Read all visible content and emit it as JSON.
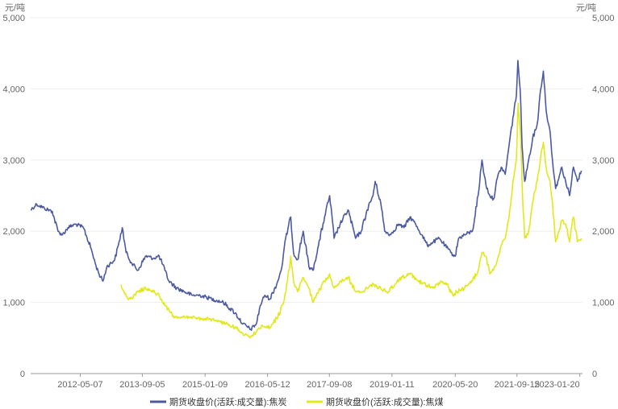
{
  "chart_data": {
    "type": "line",
    "y_unit_left": "元/吨",
    "y_unit_right": "元/吨",
    "ylim": [
      0,
      5000
    ],
    "y_ticks": [
      "0",
      "1,000",
      "2,000",
      "3,000",
      "4,000",
      "5,000"
    ],
    "y_tick_values": [
      0,
      1000,
      2000,
      3000,
      4000,
      5000
    ],
    "x_ticks": [
      "2012-05-07",
      "2013-09-05",
      "2015-01-09",
      "2016-05-12",
      "2017-09-08",
      "2019-01-11",
      "2020-05-20",
      "2021-09-15",
      "2023-01-20"
    ],
    "xlim": [
      "2011-04-15",
      "2023-02-10"
    ],
    "grid": true,
    "legend_position": "bottom",
    "series": [
      {
        "name": "期货收盘价(活跃:成交量):焦炭",
        "color": "#4b5aa0",
        "points": [
          [
            "2011-04-15",
            2300
          ],
          [
            "2011-06-01",
            2380
          ],
          [
            "2011-08-01",
            2320
          ],
          [
            "2011-10-01",
            2280
          ],
          [
            "2011-11-15",
            2000
          ],
          [
            "2011-12-20",
            1950
          ],
          [
            "2012-02-01",
            2050
          ],
          [
            "2012-04-01",
            2100
          ],
          [
            "2012-06-01",
            2050
          ],
          [
            "2012-08-01",
            1750
          ],
          [
            "2012-09-01",
            1550
          ],
          [
            "2012-10-01",
            1400
          ],
          [
            "2012-11-01",
            1300
          ],
          [
            "2012-12-01",
            1500
          ],
          [
            "2013-02-01",
            1600
          ],
          [
            "2013-03-01",
            1800
          ],
          [
            "2013-04-01",
            2050
          ],
          [
            "2013-05-01",
            1700
          ],
          [
            "2013-06-15",
            1550
          ],
          [
            "2013-08-01",
            1450
          ],
          [
            "2013-10-01",
            1650
          ],
          [
            "2013-12-01",
            1620
          ],
          [
            "2014-01-15",
            1650
          ],
          [
            "2014-03-01",
            1450
          ],
          [
            "2014-04-01",
            1300
          ],
          [
            "2014-06-01",
            1200
          ],
          [
            "2014-08-01",
            1150
          ],
          [
            "2014-10-01",
            1100
          ],
          [
            "2014-12-01",
            1100
          ],
          [
            "2015-03-01",
            1050
          ],
          [
            "2015-06-01",
            1000
          ],
          [
            "2015-09-01",
            850
          ],
          [
            "2015-11-01",
            700
          ],
          [
            "2016-01-01",
            620
          ],
          [
            "2016-02-15",
            700
          ],
          [
            "2016-03-15",
            950
          ],
          [
            "2016-04-20",
            1100
          ],
          [
            "2016-06-01",
            1050
          ],
          [
            "2016-08-01",
            1300
          ],
          [
            "2016-09-01",
            1500
          ],
          [
            "2016-10-01",
            1900
          ],
          [
            "2016-11-10",
            2200
          ],
          [
            "2016-12-01",
            1700
          ],
          [
            "2017-01-01",
            1600
          ],
          [
            "2017-02-15",
            2000
          ],
          [
            "2017-04-01",
            1500
          ],
          [
            "2017-05-01",
            1450
          ],
          [
            "2017-06-15",
            1800
          ],
          [
            "2017-08-01",
            2200
          ],
          [
            "2017-09-10",
            2500
          ],
          [
            "2017-10-15",
            1900
          ],
          [
            "2017-12-01",
            2100
          ],
          [
            "2018-02-01",
            2300
          ],
          [
            "2018-04-01",
            1900
          ],
          [
            "2018-05-15",
            2000
          ],
          [
            "2018-07-01",
            2300
          ],
          [
            "2018-08-15",
            2500
          ],
          [
            "2018-09-01",
            2700
          ],
          [
            "2018-10-15",
            2400
          ],
          [
            "2018-11-15",
            2000
          ],
          [
            "2019-01-01",
            1950
          ],
          [
            "2019-03-01",
            2100
          ],
          [
            "2019-04-15",
            2050
          ],
          [
            "2019-06-01",
            2200
          ],
          [
            "2019-07-15",
            2100
          ],
          [
            "2019-09-01",
            1950
          ],
          [
            "2019-10-15",
            1800
          ],
          [
            "2019-12-01",
            1850
          ],
          [
            "2020-01-15",
            1900
          ],
          [
            "2020-03-01",
            1800
          ],
          [
            "2020-04-15",
            1700
          ],
          [
            "2020-05-20",
            1650
          ],
          [
            "2020-06-15",
            1900
          ],
          [
            "2020-08-01",
            1950
          ],
          [
            "2020-10-01",
            2000
          ],
          [
            "2020-11-15",
            2500
          ],
          [
            "2020-12-15",
            3000
          ],
          [
            "2021-01-15",
            2650
          ],
          [
            "2021-02-15",
            2500
          ],
          [
            "2021-03-15",
            2450
          ],
          [
            "2021-04-15",
            2750
          ],
          [
            "2021-05-15",
            2900
          ],
          [
            "2021-06-15",
            2800
          ],
          [
            "2021-07-15",
            3200
          ],
          [
            "2021-08-15",
            3600
          ],
          [
            "2021-09-10",
            3900
          ],
          [
            "2021-09-22",
            4400
          ],
          [
            "2021-10-10",
            4000
          ],
          [
            "2021-10-25",
            3200
          ],
          [
            "2021-11-15",
            2700
          ],
          [
            "2021-12-15",
            3000
          ],
          [
            "2022-01-15",
            3300
          ],
          [
            "2022-02-20",
            3500
          ],
          [
            "2022-03-20",
            4000
          ],
          [
            "2022-04-10",
            4250
          ],
          [
            "2022-05-01",
            3700
          ],
          [
            "2022-06-01",
            3400
          ],
          [
            "2022-06-20",
            3000
          ],
          [
            "2022-07-15",
            2600
          ],
          [
            "2022-08-01",
            2700
          ],
          [
            "2022-09-01",
            2900
          ],
          [
            "2022-10-01",
            2700
          ],
          [
            "2022-11-01",
            2500
          ],
          [
            "2022-12-01",
            2900
          ],
          [
            "2023-01-01",
            2700
          ],
          [
            "2023-02-01",
            2850
          ]
        ]
      },
      {
        "name": "期货收盘价(活跃:成交量):焦煤",
        "color": "#e1e81b",
        "points": [
          [
            "2013-03-22",
            1250
          ],
          [
            "2013-04-15",
            1150
          ],
          [
            "2013-05-15",
            1050
          ],
          [
            "2013-06-15",
            1050
          ],
          [
            "2013-08-01",
            1150
          ],
          [
            "2013-10-01",
            1200
          ],
          [
            "2013-12-01",
            1150
          ],
          [
            "2014-01-15",
            1100
          ],
          [
            "2014-03-01",
            950
          ],
          [
            "2014-04-01",
            900
          ],
          [
            "2014-05-01",
            800
          ],
          [
            "2014-07-01",
            780
          ],
          [
            "2014-09-01",
            800
          ],
          [
            "2014-11-01",
            780
          ],
          [
            "2015-01-01",
            770
          ],
          [
            "2015-04-01",
            750
          ],
          [
            "2015-07-01",
            700
          ],
          [
            "2015-09-01",
            650
          ],
          [
            "2015-11-01",
            560
          ],
          [
            "2016-01-01",
            520
          ],
          [
            "2016-02-15",
            580
          ],
          [
            "2016-04-01",
            680
          ],
          [
            "2016-06-01",
            650
          ],
          [
            "2016-08-01",
            800
          ],
          [
            "2016-09-15",
            1000
          ],
          [
            "2016-10-15",
            1300
          ],
          [
            "2016-11-10",
            1650
          ],
          [
            "2016-12-01",
            1300
          ],
          [
            "2017-01-01",
            1150
          ],
          [
            "2017-02-15",
            1350
          ],
          [
            "2017-04-01",
            1200
          ],
          [
            "2017-05-01",
            1000
          ],
          [
            "2017-06-15",
            1150
          ],
          [
            "2017-08-01",
            1300
          ],
          [
            "2017-09-10",
            1400
          ],
          [
            "2017-10-15",
            1200
          ],
          [
            "2017-12-01",
            1300
          ],
          [
            "2018-02-01",
            1350
          ],
          [
            "2018-04-01",
            1150
          ],
          [
            "2018-06-01",
            1150
          ],
          [
            "2018-08-01",
            1250
          ],
          [
            "2018-10-15",
            1200
          ],
          [
            "2018-12-01",
            1150
          ],
          [
            "2019-02-01",
            1250
          ],
          [
            "2019-04-01",
            1350
          ],
          [
            "2019-06-01",
            1400
          ],
          [
            "2019-08-01",
            1300
          ],
          [
            "2019-10-01",
            1250
          ],
          [
            "2019-12-01",
            1200
          ],
          [
            "2020-02-01",
            1300
          ],
          [
            "2020-03-15",
            1250
          ],
          [
            "2020-05-01",
            1100
          ],
          [
            "2020-06-01",
            1150
          ],
          [
            "2020-08-01",
            1200
          ],
          [
            "2020-10-01",
            1300
          ],
          [
            "2020-11-15",
            1450
          ],
          [
            "2020-12-15",
            1700
          ],
          [
            "2021-01-15",
            1650
          ],
          [
            "2021-02-15",
            1400
          ],
          [
            "2021-03-15",
            1450
          ],
          [
            "2021-04-15",
            1600
          ],
          [
            "2021-05-15",
            1800
          ],
          [
            "2021-06-15",
            1900
          ],
          [
            "2021-07-15",
            2200
          ],
          [
            "2021-08-15",
            2700
          ],
          [
            "2021-09-10",
            3000
          ],
          [
            "2021-09-25",
            3800
          ],
          [
            "2021-10-15",
            3300
          ],
          [
            "2021-10-28",
            2500
          ],
          [
            "2021-11-15",
            1900
          ],
          [
            "2021-12-15",
            2000
          ],
          [
            "2022-01-15",
            2400
          ],
          [
            "2022-02-20",
            2700
          ],
          [
            "2022-03-20",
            3050
          ],
          [
            "2022-04-10",
            3250
          ],
          [
            "2022-05-01",
            2900
          ],
          [
            "2022-06-01",
            2700
          ],
          [
            "2022-06-20",
            2400
          ],
          [
            "2022-07-15",
            1850
          ],
          [
            "2022-08-01",
            1950
          ],
          [
            "2022-09-01",
            2150
          ],
          [
            "2022-10-01",
            2100
          ],
          [
            "2022-11-01",
            1850
          ],
          [
            "2022-12-01",
            2200
          ],
          [
            "2023-01-01",
            1850
          ],
          [
            "2023-02-01",
            1900
          ]
        ]
      }
    ]
  }
}
